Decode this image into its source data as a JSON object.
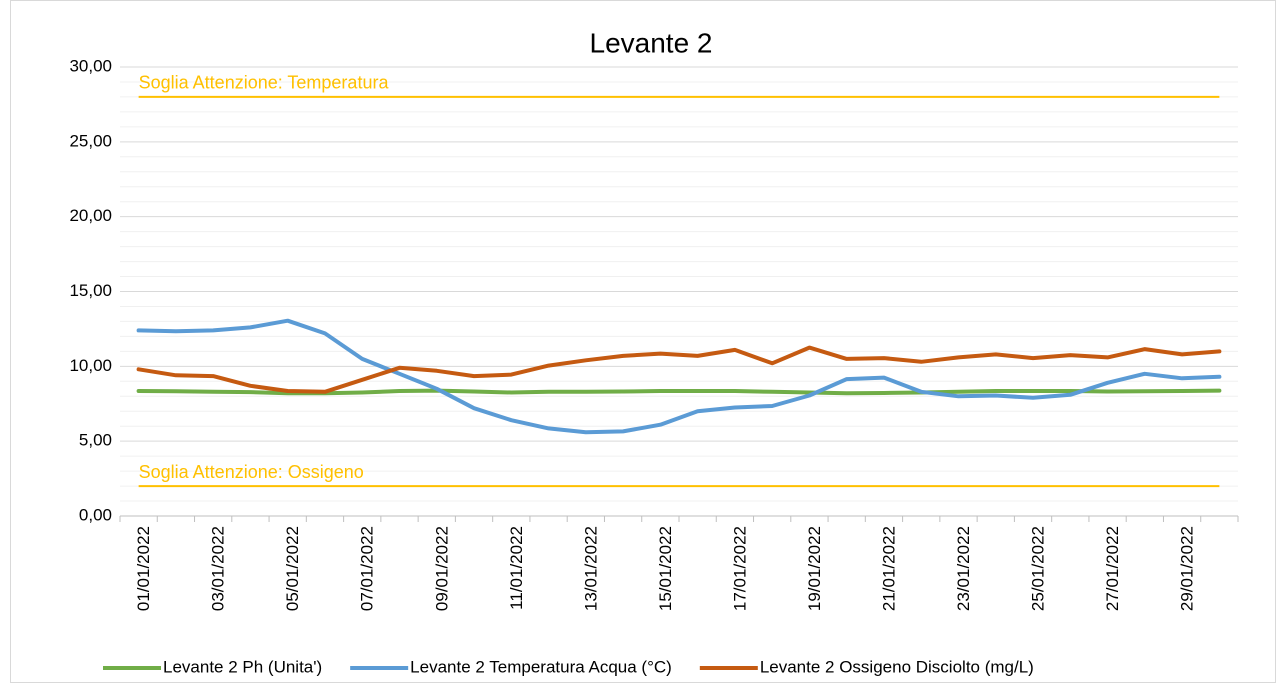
{
  "chart_data": {
    "type": "line",
    "title": "Levante 2",
    "categories": [
      "01/01/2022",
      null,
      "03/01/2022",
      null,
      "05/01/2022",
      null,
      "07/01/2022",
      null,
      "09/01/2022",
      null,
      "11/01/2022",
      null,
      "13/01/2022",
      null,
      "15/01/2022",
      null,
      "17/01/2022",
      null,
      "19/01/2022",
      null,
      "21/01/2022",
      null,
      "23/01/2022",
      null,
      "25/01/2022",
      null,
      "27/01/2022",
      null,
      "29/01/2022",
      null
    ],
    "series": [
      {
        "name": "Levante 2 Ph (Unita')",
        "color": "#70AD47",
        "values": [
          8.35,
          8.33,
          8.3,
          8.28,
          8.2,
          8.2,
          8.25,
          8.35,
          8.38,
          8.32,
          8.25,
          8.3,
          8.3,
          8.32,
          8.35,
          8.35,
          8.35,
          8.3,
          8.25,
          8.2,
          8.22,
          8.25,
          8.3,
          8.35,
          8.35,
          8.35,
          8.32,
          8.33,
          8.35,
          8.38
        ]
      },
      {
        "name": "Levante 2 Temperatura Acqua (°C)",
        "color": "#5B9BD5",
        "values": [
          12.4,
          12.35,
          12.4,
          12.6,
          13.05,
          12.2,
          10.5,
          9.5,
          8.5,
          7.2,
          6.4,
          5.85,
          5.6,
          5.65,
          6.1,
          7.0,
          7.25,
          7.35,
          8.05,
          9.15,
          9.25,
          8.3,
          8.0,
          8.05,
          7.9,
          8.1,
          8.9,
          9.5,
          9.2,
          9.3
        ]
      },
      {
        "name": "Levante 2 Ossigeno Disciolto (mg/L)",
        "color": "#C55A11",
        "values": [
          9.8,
          9.4,
          9.35,
          8.7,
          8.35,
          8.3,
          9.1,
          9.9,
          9.7,
          9.35,
          9.45,
          10.05,
          10.4,
          10.7,
          10.85,
          10.7,
          11.1,
          10.2,
          11.25,
          10.5,
          10.55,
          10.3,
          10.6,
          10.8,
          10.55,
          10.75,
          10.6,
          11.15,
          10.8,
          11.0
        ]
      }
    ],
    "thresholds": [
      {
        "label": "Soglia Attenzione: Temperatura",
        "value": 28,
        "color": "#FFC000"
      },
      {
        "label": "Soglia Attenzione: Ossigeno",
        "value": 2,
        "color": "#FFC000"
      }
    ],
    "ylim": [
      0,
      30
    ],
    "yticks": [
      {
        "value": 0,
        "label": "0,00"
      },
      {
        "value": 5,
        "label": "5,00"
      },
      {
        "value": 10,
        "label": "10,00"
      },
      {
        "value": 15,
        "label": "15,00"
      },
      {
        "value": 20,
        "label": "20,00"
      },
      {
        "value": 25,
        "label": "25,00"
      },
      {
        "value": 30,
        "label": "30,00"
      }
    ],
    "minor_yticks": [
      1,
      2,
      3,
      4,
      6,
      7,
      8,
      9,
      11,
      12,
      13,
      14,
      16,
      17,
      18,
      19,
      21,
      22,
      23,
      24,
      26,
      27,
      28,
      29
    ],
    "grid": true,
    "legend": "bottom"
  }
}
